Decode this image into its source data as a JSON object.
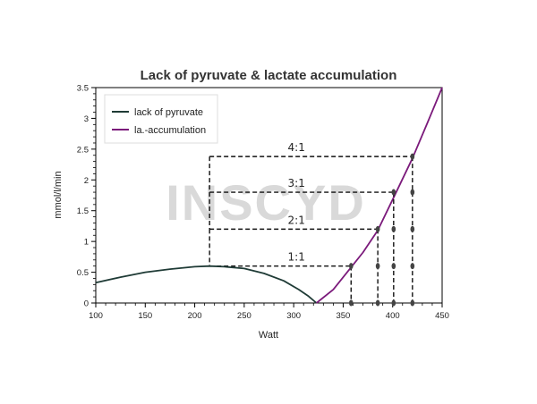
{
  "chart_data": {
    "type": "line",
    "title": "Lack of pyruvate & lactate accumulation",
    "xlabel": "Watt",
    "ylabel": "mmol/l/min",
    "xlim": [
      100,
      450
    ],
    "ylim": [
      0,
      3.5
    ],
    "x_ticks": [
      100,
      150,
      200,
      250,
      300,
      350,
      400,
      450
    ],
    "y_ticks": [
      0,
      0.5,
      1,
      1.5,
      2,
      2.5,
      3,
      3.5
    ],
    "x_tick_labels": [
      "100",
      "150",
      "200",
      "250",
      "300",
      "350",
      "400",
      "450"
    ],
    "y_tick_labels": [
      "0",
      "0.5",
      "1",
      "1.5",
      "2",
      "2.5",
      "3",
      "3.5"
    ],
    "grid": false,
    "legend_position": "top-left",
    "series": [
      {
        "name": "lack of pyruvate",
        "color": "#1f3b36",
        "x": [
          100,
          125,
          150,
          175,
          200,
          215,
          230,
          250,
          270,
          290,
          305,
          315,
          323
        ],
        "y": [
          0.33,
          0.42,
          0.5,
          0.55,
          0.59,
          0.6,
          0.59,
          0.56,
          0.48,
          0.36,
          0.22,
          0.11,
          0.0
        ]
      },
      {
        "name": "la.-accumulation",
        "color": "#7b1a7b",
        "x": [
          323,
          340,
          358,
          370,
          385,
          400,
          420,
          435,
          450
        ],
        "y": [
          0.0,
          0.22,
          0.58,
          0.82,
          1.18,
          1.68,
          2.35,
          2.92,
          3.5
        ]
      }
    ],
    "ratio_annotations": [
      {
        "label": "1:1",
        "x_start": 215,
        "x_end": 358,
        "y": 0.6
      },
      {
        "label": "2:1",
        "x_start": 215,
        "x_end": 385,
        "y": 1.2
      },
      {
        "label": "3:1",
        "x_start": 215,
        "x_end": 401,
        "y": 1.8
      },
      {
        "label": "4:1",
        "x_start": 215,
        "x_end": 420,
        "y": 2.38
      }
    ],
    "vertical_markers": [
      {
        "x": 358,
        "y_max": 0.6,
        "points": [
          0.0,
          0.6
        ]
      },
      {
        "x": 385,
        "y_max": 1.2,
        "points": [
          0.0,
          0.6,
          1.2
        ]
      },
      {
        "x": 401,
        "y_max": 1.8,
        "points": [
          0.0,
          0.6,
          1.2,
          1.8
        ]
      },
      {
        "x": 420,
        "y_max": 2.38,
        "points": [
          0.0,
          0.6,
          1.2,
          1.8,
          2.38
        ]
      }
    ]
  },
  "watermark": "INSCYD"
}
